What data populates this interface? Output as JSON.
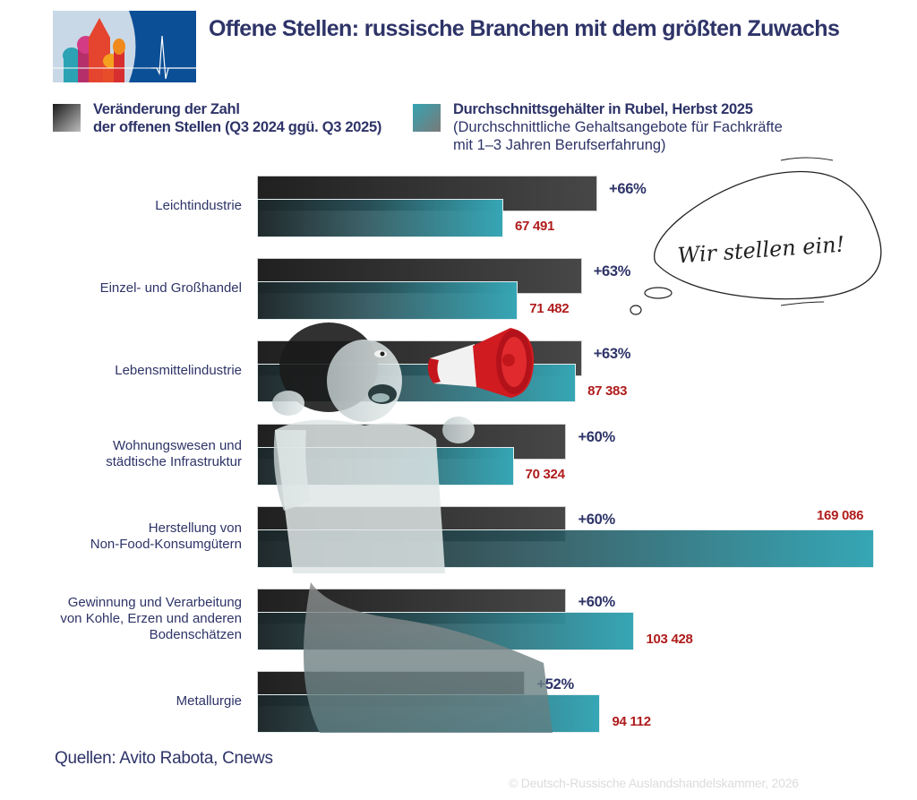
{
  "header": {
    "title": "Offene Stellen: russische Branchen mit dem größten Zuwachs",
    "logo_icon": "kremlin-heartbeat-logo-icon"
  },
  "legend": {
    "items": [
      {
        "swatch_color": "#2b2b2b",
        "line1": "Veränderung der Zahl",
        "line2": "der offenen Stellen (Q3 2024 ggü. Q3 2025)"
      },
      {
        "swatch_color": "#2f97a4",
        "line1": "Durchschnittsgehälter in Rubel, Herbst 2025",
        "line2": "(Durchschnittliche Gehaltsangebote für Fachkräfte",
        "line3": "mit 1–3 Jahren Berufserfahrung)"
      }
    ]
  },
  "callout": {
    "text": "Wir stellen ein!",
    "icon": "thought-bubble-icon"
  },
  "decor": {
    "photo": "woman-with-megaphone-photo",
    "megaphone_icon": "megaphone-icon"
  },
  "footer": {
    "sources": "Quellen: Avito Rabota, Cnews",
    "copyright": "© Deutsch-Russische Auslandshandelskammer, 2026"
  },
  "colors": {
    "title": "#2e3468",
    "change_bar": "#2b2b2b",
    "salary_bar": "#36a6b5",
    "pct_label": "#2e3468",
    "salary_label": "#b01c1c"
  },
  "chart_data": {
    "type": "bar",
    "orientation": "horizontal",
    "title": "Offene Stellen: russische Branchen mit dem größten Zuwachs",
    "categories": [
      "Leichtindustrie",
      "Einzel- und Großhandel",
      "Lebensmittelindustrie",
      "Wohnungswesen und städtische Infrastruktur",
      "Herstellung von Non-Food-Konsumgütern",
      "Gewinnung und Verarbeitung von Kohle, Erzen und anderen Bodenschätzen",
      "Metallurgie"
    ],
    "category_lines": [
      [
        "Leichtindustrie"
      ],
      [
        "Einzel- und Großhandel"
      ],
      [
        "Lebensmittelindustrie"
      ],
      [
        "Wohnungswesen und",
        "städtische Infrastruktur"
      ],
      [
        "Herstellung von",
        "Non-Food-Konsumgütern"
      ],
      [
        "Gewinnung und Verarbeitung",
        "von Kohle, Erzen und anderen",
        "Bodenschätzen"
      ],
      [
        "Metallurgie"
      ]
    ],
    "series": [
      {
        "name": "Veränderung der Zahl der offenen Stellen (Q3 2024 ggü. Q3 2025)",
        "unit": "%",
        "values": [
          66,
          63,
          63,
          60,
          60,
          60,
          52
        ],
        "labels": [
          "+66%",
          "+63%",
          "+63%",
          "+60%",
          "+60%",
          "+60%",
          "+52%"
        ]
      },
      {
        "name": "Durchschnittsgehälter in Rubel, Herbst 2025 (Durchschnittliche Gehaltsangebote für Fachkräfte mit 1–3 Jahren Berufserfahrung)",
        "unit": "RUB",
        "values": [
          67491,
          71482,
          87383,
          70324,
          169086,
          103428,
          94112
        ],
        "labels": [
          "67 491",
          "71 482",
          "87 383",
          "70 324",
          "169 086",
          "103 428",
          "94 112"
        ]
      }
    ],
    "xlabel": "",
    "ylabel": "",
    "grid": false,
    "legend_position": "top",
    "source": "Quellen: Avito Rabota, Cnews"
  }
}
